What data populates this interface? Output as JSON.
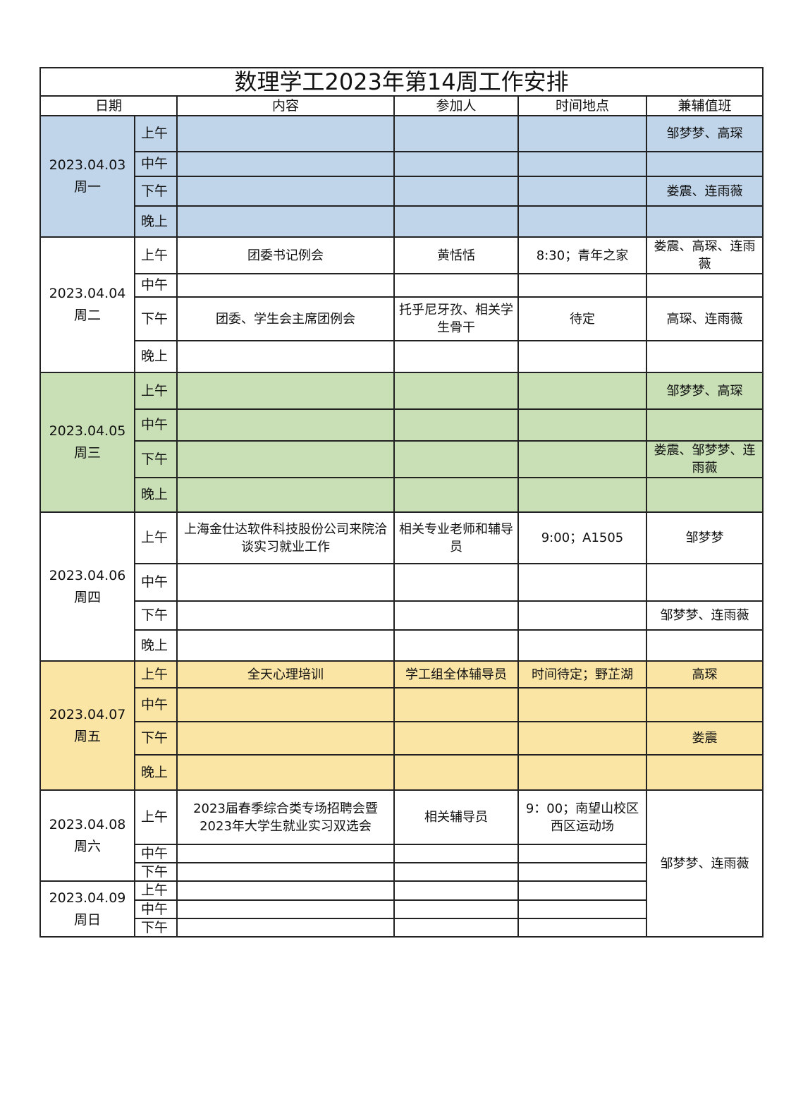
{
  "title": "数理学工2023年第14周工作安排",
  "headers": {
    "date": "日期",
    "content": "内容",
    "participants": "参加人",
    "time_place": "时间地点",
    "duty": "兼辅值班"
  },
  "colors": {
    "monday": "#c0d5ea",
    "wednesday": "#c9e0b6",
    "friday": "#fae5a4",
    "default": "#ffffff"
  },
  "days": [
    {
      "date": "2023.04.03",
      "weekday": "周一",
      "color": "#c0d5ea",
      "slots": [
        {
          "period": "上午",
          "content": "",
          "participants": "",
          "time_place": "",
          "duty": "邹梦梦、高琛"
        },
        {
          "period": "中午",
          "content": "",
          "participants": "",
          "time_place": "",
          "duty": ""
        },
        {
          "period": "下午",
          "content": "",
          "participants": "",
          "time_place": "",
          "duty": "娄震、连雨薇"
        },
        {
          "period": "晚上",
          "content": "",
          "participants": "",
          "time_place": "",
          "duty": ""
        }
      ]
    },
    {
      "date": "2023.04.04",
      "weekday": "周二",
      "color": "#ffffff",
      "slots": [
        {
          "period": "上午",
          "content": "团委书记例会",
          "participants": "黄恬恬",
          "time_place": "8:30；青年之家",
          "duty": "娄震、高琛、连雨薇"
        },
        {
          "period": "中午",
          "content": "",
          "participants": "",
          "time_place": "",
          "duty": ""
        },
        {
          "period": "下午",
          "content": "团委、学生会主席团例会",
          "participants": "托乎尼牙孜、相关学生骨干",
          "time_place": "待定",
          "duty": "高琛、连雨薇"
        },
        {
          "period": "晚上",
          "content": "",
          "participants": "",
          "time_place": "",
          "duty": ""
        }
      ]
    },
    {
      "date": "2023.04.05",
      "weekday": "周三",
      "color": "#c9e0b6",
      "slots": [
        {
          "period": "上午",
          "content": "",
          "participants": "",
          "time_place": "",
          "duty": "邹梦梦、高琛"
        },
        {
          "period": "中午",
          "content": "",
          "participants": "",
          "time_place": "",
          "duty": ""
        },
        {
          "period": "下午",
          "content": "",
          "participants": "",
          "time_place": "",
          "duty": "娄震、邹梦梦、连雨薇"
        },
        {
          "period": "晚上",
          "content": "",
          "participants": "",
          "time_place": "",
          "duty": ""
        }
      ]
    },
    {
      "date": "2023.04.06",
      "weekday": "周四",
      "color": "#ffffff",
      "slots": [
        {
          "period": "上午",
          "content": "上海金仕达软件科技股份公司来院洽谈实习就业工作",
          "participants": "相关专业老师和辅导员",
          "time_place": "9:00；A1505",
          "duty": "邹梦梦"
        },
        {
          "period": "中午",
          "content": "",
          "participants": "",
          "time_place": "",
          "duty": ""
        },
        {
          "period": "下午",
          "content": "",
          "participants": "",
          "time_place": "",
          "duty": "邹梦梦、连雨薇"
        },
        {
          "period": "晚上",
          "content": "",
          "participants": "",
          "time_place": "",
          "duty": ""
        }
      ]
    },
    {
      "date": "2023.04.07",
      "weekday": "周五",
      "color": "#fae5a4",
      "slots": [
        {
          "period": "上午",
          "content": "全天心理培训",
          "participants": "学工组全体辅导员",
          "time_place": "时间待定；野芷湖",
          "duty": "高琛"
        },
        {
          "period": "中午",
          "content": "",
          "participants": "",
          "time_place": "",
          "duty": ""
        },
        {
          "period": "下午",
          "content": "",
          "participants": "",
          "time_place": "",
          "duty": "娄震"
        },
        {
          "period": "晚上",
          "content": "",
          "participants": "",
          "time_place": "",
          "duty": ""
        }
      ]
    },
    {
      "date": "2023.04.08",
      "weekday": "周六",
      "color": "#ffffff",
      "slots": [
        {
          "period": "上午",
          "content": "2023届春季综合类专场招聘会暨2023年大学生就业实习双选会",
          "participants": "相关辅导员",
          "time_place": "9：00；南望山校区西区运动场"
        },
        {
          "period": "中午",
          "content": "",
          "participants": "",
          "time_place": ""
        },
        {
          "period": "下午",
          "content": "",
          "participants": "",
          "time_place": ""
        }
      ]
    },
    {
      "date": "2023.04.09",
      "weekday": "周日",
      "color": "#ffffff",
      "slots": [
        {
          "period": "上午",
          "content": "",
          "participants": "",
          "time_place": ""
        },
        {
          "period": "中午",
          "content": "",
          "participants": "",
          "time_place": ""
        },
        {
          "period": "下午",
          "content": "",
          "participants": "",
          "time_place": ""
        }
      ]
    }
  ],
  "weekend_duty": "邹梦梦、连雨薇"
}
